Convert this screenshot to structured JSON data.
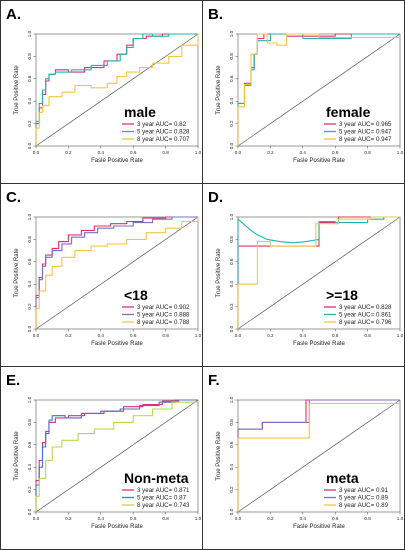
{
  "figure": {
    "panel_letters": [
      "A.",
      "B.",
      "C.",
      "D.",
      "E.",
      "F."
    ],
    "xlabel": "Fasle Positive Rate",
    "ylabel": "True Positive Rate"
  },
  "chart_data": [
    {
      "type": "line",
      "panel": "A.",
      "group_label": "male",
      "xlabel": "Fasle Positive Rate",
      "ylabel": "True Positive Rate",
      "xlim": [
        0,
        1
      ],
      "ylim": [
        0,
        1
      ],
      "xticks": [
        "0.0",
        "0.2",
        "0.4",
        "0.6",
        "0.8",
        "1.0"
      ],
      "yticks": [
        "0.0",
        "0.2",
        "0.4",
        "0.6",
        "0.8",
        "1.0"
      ],
      "reference_line": true,
      "legend_position": "bottom-right",
      "series": [
        {
          "name": "3 year AUC= 0.82",
          "color": "#e0306f",
          "x": [
            0,
            0,
            0.02,
            0.02,
            0.04,
            0.04,
            0.06,
            0.06,
            0.08,
            0.08,
            0.12,
            0.12,
            0.2,
            0.2,
            0.3,
            0.3,
            0.42,
            0.42,
            0.5,
            0.5,
            0.56,
            0.56,
            0.6,
            0.6,
            0.68,
            0.68,
            0.78,
            0.78,
            0.86,
            0.86,
            1.0
          ],
          "y": [
            0,
            0.2,
            0.2,
            0.34,
            0.34,
            0.46,
            0.46,
            0.58,
            0.58,
            0.64,
            0.64,
            0.68,
            0.68,
            0.66,
            0.66,
            0.7,
            0.7,
            0.76,
            0.76,
            0.82,
            0.82,
            0.9,
            0.9,
            0.96,
            0.96,
            0.98,
            0.98,
            1.0,
            1.0,
            1.0,
            1.0
          ]
        },
        {
          "name": "5 year AUC= 0.828",
          "color": "#1fb5ad",
          "x": [
            0,
            0,
            0.02,
            0.02,
            0.04,
            0.04,
            0.06,
            0.06,
            0.08,
            0.08,
            0.12,
            0.12,
            0.22,
            0.22,
            0.34,
            0.34,
            0.44,
            0.44,
            0.52,
            0.52,
            0.56,
            0.56,
            0.6,
            0.6,
            0.66,
            0.66,
            0.72,
            0.72,
            0.82,
            0.82,
            0.9,
            0.9,
            1.0
          ],
          "y": [
            0,
            0.22,
            0.22,
            0.38,
            0.38,
            0.5,
            0.5,
            0.6,
            0.6,
            0.64,
            0.64,
            0.66,
            0.66,
            0.68,
            0.68,
            0.72,
            0.72,
            0.76,
            0.76,
            0.82,
            0.82,
            0.88,
            0.88,
            0.96,
            0.96,
            1.0,
            1.0,
            0.98,
            0.98,
            1.0,
            1.0,
            1.0,
            1.0
          ]
        },
        {
          "name": "8 year AUC= 0.707",
          "color": "#f5c542",
          "x": [
            0,
            0,
            0.02,
            0.02,
            0.04,
            0.04,
            0.08,
            0.08,
            0.16,
            0.16,
            0.24,
            0.24,
            0.34,
            0.34,
            0.44,
            0.44,
            0.5,
            0.5,
            0.56,
            0.56,
            0.64,
            0.64,
            0.72,
            0.72,
            0.82,
            0.82,
            0.9,
            0.9,
            1.0,
            1.0
          ],
          "y": [
            0,
            0.16,
            0.16,
            0.3,
            0.3,
            0.36,
            0.36,
            0.44,
            0.44,
            0.48,
            0.48,
            0.54,
            0.54,
            0.52,
            0.52,
            0.56,
            0.56,
            0.62,
            0.62,
            0.66,
            0.66,
            0.7,
            0.7,
            0.74,
            0.74,
            0.8,
            0.8,
            0.9,
            0.9,
            1.0
          ]
        }
      ]
    },
    {
      "type": "line",
      "panel": "B.",
      "group_label": "female",
      "xlabel": "Fasle Positive Rate",
      "ylabel": "True Positive Rate",
      "xlim": [
        0,
        1
      ],
      "ylim": [
        0,
        1
      ],
      "xticks": [
        "0.0",
        "0.2",
        "0.4",
        "0.6",
        "0.8",
        "1.0"
      ],
      "yticks": [
        "0.0",
        "0.2",
        "0.4",
        "0.6",
        "0.8",
        "1.0"
      ],
      "reference_line": true,
      "legend_position": "bottom-right",
      "series": [
        {
          "name": "3 year AUC= 0.965",
          "color": "#e0306f",
          "x": [
            0,
            0,
            0.04,
            0.04,
            0.08,
            0.08,
            0.1,
            0.1,
            0.12,
            0.12,
            0.16,
            0.16,
            0.3,
            0.3,
            0.6,
            0.6,
            1.0
          ],
          "y": [
            0,
            0.38,
            0.38,
            0.56,
            0.56,
            0.7,
            0.7,
            0.82,
            0.82,
            0.96,
            0.96,
            1.0,
            1.0,
            0.98,
            0.98,
            1.0,
            1.0
          ]
        },
        {
          "name": "5 year AUC= 0.947",
          "color": "#1fb5ad",
          "x": [
            0,
            0,
            0.04,
            0.04,
            0.08,
            0.08,
            0.1,
            0.1,
            0.12,
            0.12,
            0.2,
            0.2,
            0.4,
            0.4,
            0.7,
            0.7,
            1.0
          ],
          "y": [
            0,
            0.38,
            0.38,
            0.54,
            0.54,
            0.68,
            0.68,
            0.82,
            0.82,
            0.94,
            0.94,
            1.0,
            1.0,
            0.96,
            0.96,
            1.0,
            1.0
          ]
        },
        {
          "name": "8 year AUC= 0.947",
          "color": "#f5c542",
          "x": [
            0,
            0,
            0.04,
            0.04,
            0.08,
            0.08,
            0.12,
            0.12,
            0.18,
            0.18,
            0.24,
            0.24,
            0.3,
            0.3,
            0.5,
            0.5,
            1.0
          ],
          "y": [
            0,
            0.35,
            0.35,
            0.55,
            0.55,
            0.82,
            0.82,
            1.0,
            1.0,
            0.92,
            0.92,
            0.9,
            0.9,
            1.0,
            1.0,
            0.97,
            0.97
          ]
        }
      ]
    },
    {
      "type": "line",
      "panel": "C.",
      "group_label": "<18",
      "xlabel": "Fasle Positive Rate",
      "ylabel": "True Positive Rate",
      "xlim": [
        0,
        1
      ],
      "ylim": [
        0,
        1
      ],
      "xticks": [
        "0.0",
        "0.2",
        "0.4",
        "0.6",
        "0.8",
        "1.0"
      ],
      "yticks": [
        "0.0",
        "0.2",
        "0.4",
        "0.6",
        "0.8",
        "1.0"
      ],
      "reference_line": true,
      "legend_position": "bottom-right",
      "series": [
        {
          "name": "3 year AUC= 0.902",
          "color": "#e0306f",
          "x": [
            0,
            0,
            0.02,
            0.02,
            0.04,
            0.04,
            0.06,
            0.06,
            0.1,
            0.1,
            0.14,
            0.14,
            0.2,
            0.2,
            0.28,
            0.28,
            0.36,
            0.36,
            0.46,
            0.46,
            0.56,
            0.56,
            0.66,
            0.66,
            0.8,
            0.8,
            1.0
          ],
          "y": [
            0,
            0.3,
            0.3,
            0.46,
            0.46,
            0.58,
            0.58,
            0.66,
            0.66,
            0.72,
            0.72,
            0.78,
            0.78,
            0.84,
            0.84,
            0.88,
            0.88,
            0.92,
            0.92,
            0.94,
            0.94,
            0.96,
            0.96,
            0.99,
            0.99,
            1.0,
            1.0
          ]
        },
        {
          "name": "5 year AUC= 0.888",
          "color": "#7a6cc7",
          "x": [
            0,
            0,
            0.02,
            0.02,
            0.04,
            0.04,
            0.06,
            0.06,
            0.1,
            0.1,
            0.16,
            0.16,
            0.22,
            0.22,
            0.3,
            0.3,
            0.38,
            0.38,
            0.48,
            0.48,
            0.6,
            0.6,
            0.72,
            0.72,
            0.84,
            0.84,
            1.0
          ],
          "y": [
            0,
            0.28,
            0.28,
            0.44,
            0.44,
            0.56,
            0.56,
            0.64,
            0.64,
            0.7,
            0.7,
            0.76,
            0.76,
            0.82,
            0.82,
            0.86,
            0.86,
            0.9,
            0.9,
            0.92,
            0.92,
            0.95,
            0.95,
            0.98,
            0.98,
            1.0,
            1.0
          ]
        },
        {
          "name": "8 year AUC= 0.788",
          "color": "#f5c542",
          "x": [
            0,
            0,
            0.02,
            0.02,
            0.06,
            0.06,
            0.1,
            0.1,
            0.16,
            0.16,
            0.24,
            0.24,
            0.34,
            0.34,
            0.44,
            0.44,
            0.56,
            0.56,
            0.68,
            0.68,
            0.8,
            0.8,
            0.9,
            0.9,
            1.0,
            1.0
          ],
          "y": [
            0,
            0.18,
            0.18,
            0.34,
            0.34,
            0.48,
            0.48,
            0.56,
            0.56,
            0.64,
            0.64,
            0.7,
            0.7,
            0.74,
            0.74,
            0.76,
            0.76,
            0.8,
            0.8,
            0.86,
            0.86,
            0.9,
            0.9,
            0.96,
            0.96,
            1.0
          ]
        }
      ]
    },
    {
      "type": "line",
      "panel": "D.",
      "group_label": ">=18",
      "xlabel": "Fasle Positive Rate",
      "ylabel": "True Positive Rate",
      "xlim": [
        0,
        1
      ],
      "ylim": [
        0,
        1
      ],
      "xticks": [
        "0.0",
        "0.2",
        "0.4",
        "0.6",
        "0.8",
        "1.0"
      ],
      "yticks": [
        "0.0",
        "0.2",
        "0.4",
        "0.6",
        "0.8",
        "1.0"
      ],
      "reference_line": true,
      "legend_position": "bottom-right",
      "series": [
        {
          "name": "3 year AUC= 0.828",
          "color": "#e0306f",
          "x": [
            0,
            0,
            0.16,
            0.16,
            0.5,
            0.5,
            0.62,
            0.62,
            1.0
          ],
          "y": [
            0,
            0.74,
            0.74,
            0.74,
            0.74,
            0.95,
            0.95,
            1.0,
            1.0
          ]
        },
        {
          "name": "5 year AUC= 0.861",
          "color": "#1fb5ad",
          "x": [
            0,
            0.0,
            0.04,
            0.08,
            0.12,
            0.18,
            0.26,
            0.34,
            0.42,
            0.5,
            0.5,
            0.6,
            0.6,
            0.8,
            0.8,
            0.9,
            0.9,
            1.0
          ],
          "y": [
            0,
            0.98,
            0.93,
            0.88,
            0.84,
            0.8,
            0.78,
            0.77,
            0.78,
            0.8,
            0.96,
            0.96,
            0.95,
            0.95,
            0.98,
            0.98,
            1.0,
            1.0
          ]
        },
        {
          "name": "8 year AUC= 0.796",
          "color": "#f5c542",
          "x": [
            0,
            0,
            0.12,
            0.12,
            0.2,
            0.2,
            0.48,
            0.48,
            0.62,
            0.62,
            0.82,
            0.82,
            1.0
          ],
          "y": [
            0,
            0.4,
            0.4,
            0.78,
            0.78,
            0.74,
            0.74,
            0.94,
            0.94,
            0.98,
            0.98,
            1.0,
            1.0
          ]
        }
      ]
    },
    {
      "type": "line",
      "panel": "E.",
      "group_label": "Non-meta",
      "xlabel": "Fasle Positive Rate",
      "ylabel": "True Positive Rate",
      "xlim": [
        0,
        1
      ],
      "ylim": [
        0,
        1
      ],
      "xticks": [
        "0.0",
        "0.2",
        "0.4",
        "0.6",
        "0.8",
        "1.0"
      ],
      "yticks": [
        "0.0",
        "0.2",
        "0.4",
        "0.6",
        "0.8",
        "1.0"
      ],
      "reference_line": true,
      "legend_position": "bottom-right",
      "series": [
        {
          "name": "3 year AUC= 0.871",
          "color": "#e0306f",
          "x": [
            0,
            0,
            0.02,
            0.02,
            0.04,
            0.04,
            0.06,
            0.06,
            0.08,
            0.08,
            0.12,
            0.12,
            0.2,
            0.2,
            0.3,
            0.3,
            0.42,
            0.42,
            0.54,
            0.54,
            0.66,
            0.66,
            0.78,
            0.78,
            0.88,
            0.88,
            1.0
          ],
          "y": [
            0,
            0.28,
            0.28,
            0.46,
            0.46,
            0.62,
            0.62,
            0.72,
            0.72,
            0.8,
            0.8,
            0.84,
            0.84,
            0.86,
            0.86,
            0.88,
            0.88,
            0.9,
            0.9,
            0.94,
            0.94,
            0.96,
            0.96,
            0.99,
            0.99,
            1.0,
            1.0
          ]
        },
        {
          "name": "5 year AUC= 0.87",
          "color": "#4a6fd1",
          "x": [
            0,
            0,
            0.02,
            0.02,
            0.04,
            0.04,
            0.06,
            0.06,
            0.08,
            0.08,
            0.1,
            0.1,
            0.18,
            0.18,
            0.28,
            0.28,
            0.4,
            0.4,
            0.52,
            0.52,
            0.64,
            0.64,
            0.76,
            0.76,
            0.86,
            0.86,
            1.0
          ],
          "y": [
            0,
            0.24,
            0.24,
            0.4,
            0.4,
            0.58,
            0.58,
            0.7,
            0.7,
            0.82,
            0.82,
            0.86,
            0.86,
            0.84,
            0.84,
            0.88,
            0.88,
            0.9,
            0.9,
            0.92,
            0.92,
            0.95,
            0.95,
            0.98,
            0.98,
            1.0,
            1.0
          ]
        },
        {
          "name": "8 year AUC= 0.743",
          "color": "#b8d94a",
          "x": [
            0,
            0,
            0.02,
            0.02,
            0.06,
            0.06,
            0.1,
            0.1,
            0.16,
            0.16,
            0.26,
            0.26,
            0.36,
            0.36,
            0.48,
            0.48,
            0.6,
            0.6,
            0.72,
            0.72,
            0.84,
            0.84,
            1.0
          ],
          "y": [
            0,
            0.14,
            0.14,
            0.3,
            0.3,
            0.46,
            0.46,
            0.58,
            0.58,
            0.64,
            0.64,
            0.7,
            0.7,
            0.74,
            0.74,
            0.8,
            0.8,
            0.86,
            0.86,
            0.92,
            0.92,
            0.98,
            0.98
          ]
        }
      ]
    },
    {
      "type": "line",
      "panel": "F.",
      "group_label": "meta",
      "xlabel": "Fasle Positive Rate",
      "ylabel": "True Positive Rate",
      "xlim": [
        0,
        1
      ],
      "ylim": [
        0,
        1
      ],
      "xticks": [
        "0.0",
        "0.2",
        "0.4",
        "0.6",
        "0.8",
        "1.0"
      ],
      "yticks": [
        "0.0",
        "0.2",
        "0.4",
        "0.6",
        "0.8",
        "1.0"
      ],
      "reference_line": true,
      "legend_position": "bottom-right",
      "series": [
        {
          "name": "3 year AUC= 0.91",
          "color": "#e0306f",
          "x": [
            0,
            0,
            0.15,
            0.15,
            0.42,
            0.42,
            1.0
          ],
          "y": [
            0,
            0.74,
            0.74,
            0.8,
            0.8,
            1.0,
            1.0
          ]
        },
        {
          "name": "5 year AUC= 0.89",
          "color": "#7a6cc7",
          "x": [
            0,
            0,
            0.15,
            0.15,
            0.44,
            0.44,
            1.0
          ],
          "y": [
            0,
            0.74,
            0.74,
            0.8,
            0.8,
            1.0,
            1.0
          ]
        },
        {
          "name": "8 year AUC= 0.89",
          "color": "#f5c542",
          "x": [
            0,
            0,
            0.15,
            0.15,
            0.44,
            0.44,
            1.0
          ],
          "y": [
            0,
            0.66,
            0.66,
            0.66,
            0.66,
            0.97,
            0.97
          ]
        }
      ]
    }
  ]
}
